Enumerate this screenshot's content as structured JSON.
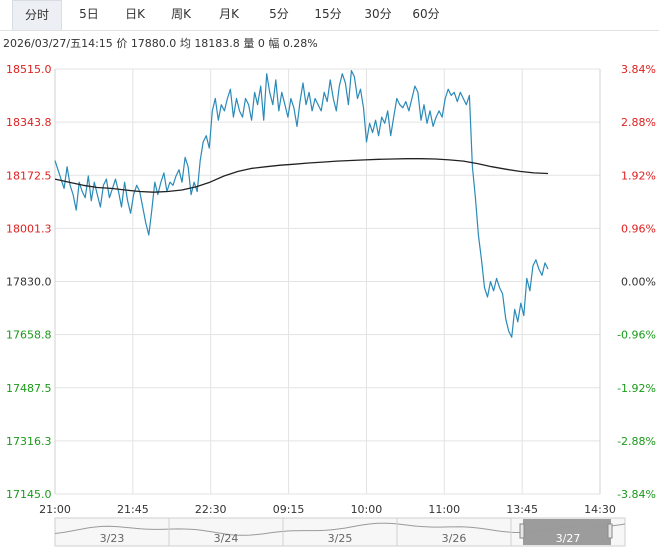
{
  "tabs": [
    {
      "label": "分时",
      "active": true
    },
    {
      "label": "5日",
      "active": false
    },
    {
      "label": "日K",
      "active": false
    },
    {
      "label": "周K",
      "active": false
    },
    {
      "label": "月K",
      "active": false
    },
    {
      "label": "5分",
      "active": false
    },
    {
      "label": "15分",
      "active": false
    },
    {
      "label": "30分",
      "active": false
    },
    {
      "label": "60分",
      "active": false
    }
  ],
  "info": {
    "datetime": "2026/03/27/五14:15",
    "price_label": "价",
    "price": "17880.0",
    "avg_label": "均",
    "avg": "18183.8",
    "volume_label": "量",
    "volume": "0",
    "change_label": "幅",
    "change": "0.28%"
  },
  "colors": {
    "up": "#e02020",
    "down": "#1a9a1a",
    "price_line": "#2a8ab8",
    "avg_line": "#222222",
    "grid": "#e3e3e3",
    "navigator_selected": "#8c8c8c"
  },
  "chart_data": {
    "type": "line",
    "base_price": 17830.0,
    "ylim": [
      17145.0,
      18515.0
    ],
    "y_ticks": [
      "18515.0",
      "18343.8",
      "18172.5",
      "18001.3",
      "17830.0",
      "17658.8",
      "17487.5",
      "17316.3",
      "17145.0"
    ],
    "pct_ticks": [
      "3.84%",
      "2.88%",
      "1.92%",
      "0.96%",
      "0.00%",
      "-0.96%",
      "-1.92%",
      "-2.88%",
      "-3.84%"
    ],
    "x_ticks": [
      "21:00",
      "21:45",
      "22:30",
      "09:15",
      "10:00",
      "11:00",
      "13:45",
      "14:30"
    ],
    "series": [
      {
        "role": "price",
        "values": [
          18220,
          18190,
          18160,
          18130,
          18200,
          18140,
          18110,
          18060,
          18150,
          18120,
          18100,
          18170,
          18090,
          18150,
          18110,
          18070,
          18140,
          18160,
          18100,
          18130,
          18160,
          18120,
          18070,
          18150,
          18090,
          18050,
          18110,
          18140,
          18120,
          18070,
          18020,
          17980,
          18060,
          18150,
          18110,
          18150,
          18180,
          18120,
          18150,
          18140,
          18170,
          18190,
          18150,
          18230,
          18200,
          18110,
          18150,
          18120,
          18220,
          18280,
          18300,
          18260,
          18380,
          18420,
          18350,
          18400,
          18380,
          18420,
          18450,
          18360,
          18420,
          18380,
          18360,
          18420,
          18400,
          18350,
          18440,
          18400,
          18460,
          18350,
          18500,
          18440,
          18400,
          18480,
          18380,
          18440,
          18400,
          18360,
          18420,
          18390,
          18330,
          18410,
          18470,
          18400,
          18440,
          18380,
          18420,
          18400,
          18380,
          18440,
          18410,
          18480,
          18420,
          18380,
          18460,
          18500,
          18470,
          18400,
          18510,
          18490,
          18420,
          18450,
          18390,
          18280,
          18340,
          18310,
          18350,
          18300,
          18360,
          18340,
          18380,
          18300,
          18360,
          18420,
          18400,
          18390,
          18410,
          18380,
          18420,
          18460,
          18440,
          18350,
          18400,
          18340,
          18380,
          18330,
          18360,
          18380,
          18360,
          18420,
          18450,
          18430,
          18440,
          18410,
          18440,
          18420,
          18400,
          18430,
          18200,
          18100,
          17980,
          17900,
          17810,
          17780,
          17830,
          17800,
          17840,
          17810,
          17790,
          17710,
          17670,
          17650,
          17740,
          17700,
          17760,
          17720,
          17840,
          17800,
          17880,
          17900,
          17870,
          17850,
          17890,
          17870
        ]
      },
      {
        "role": "average",
        "values": [
          18160,
          18150,
          18140,
          18133,
          18130,
          18125,
          18120,
          18118,
          18120,
          18125,
          18135,
          18150,
          18170,
          18185,
          18195,
          18200,
          18205,
          18208,
          18212,
          18215,
          18218,
          18220,
          18222,
          18224,
          18225,
          18226,
          18226,
          18225,
          18222,
          18218,
          18210,
          18200,
          18192,
          18185,
          18180,
          18178
        ]
      }
    ]
  },
  "navigator": {
    "dates": [
      "3/23",
      "3/24",
      "3/25",
      "3/26",
      "3/27"
    ]
  }
}
